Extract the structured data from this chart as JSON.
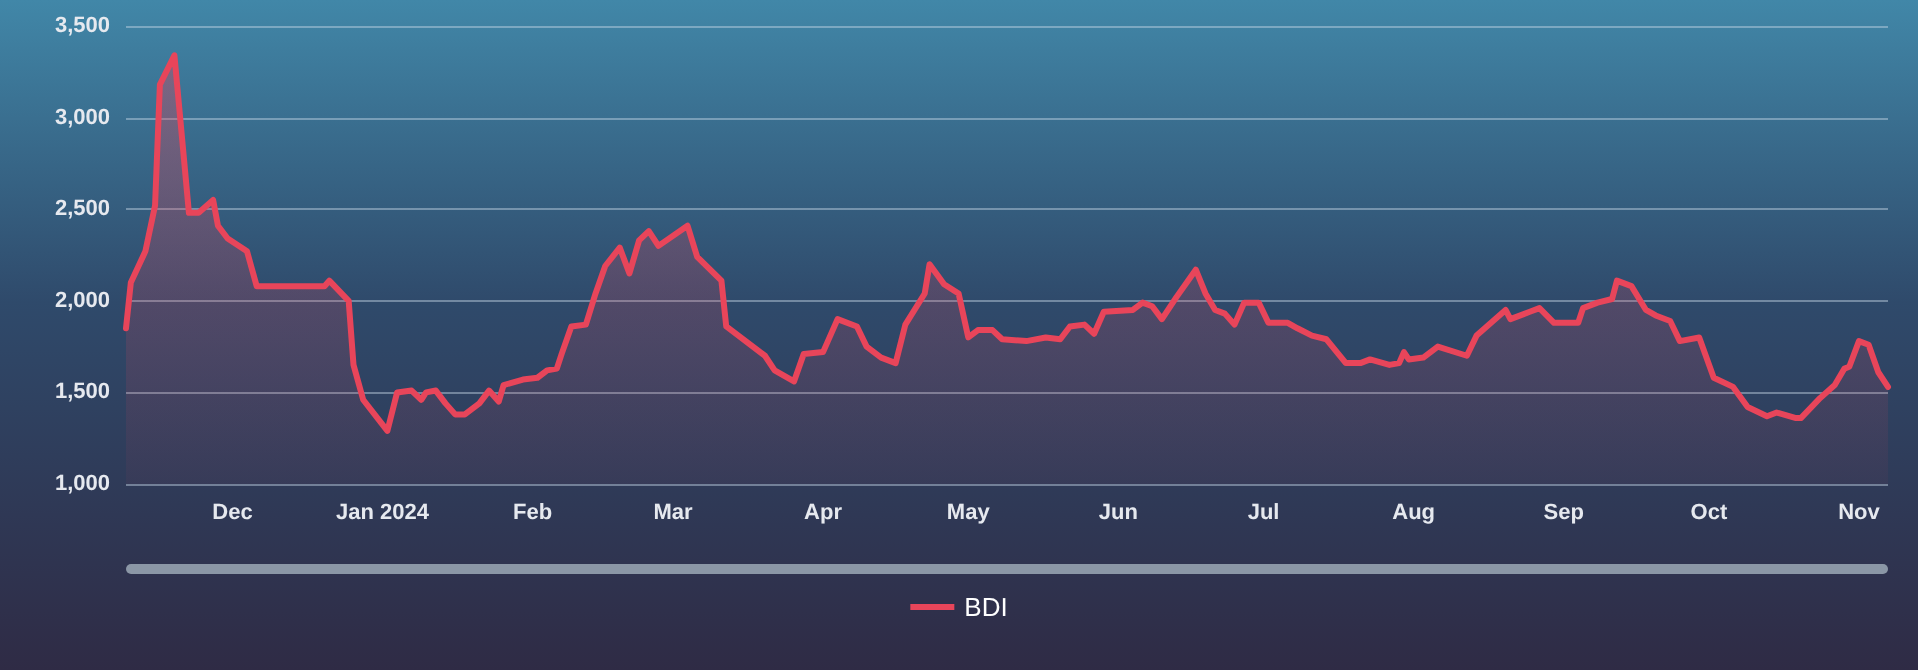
{
  "chart_data": {
    "type": "area",
    "xlim": [
      "2023-11-09",
      "2024-11-07"
    ],
    "xticks": [
      {
        "value": "2023-12-01",
        "label": "Dec"
      },
      {
        "value": "2024-01-01",
        "label": "Jan 2024"
      },
      {
        "value": "2024-02-01",
        "label": "Feb"
      },
      {
        "value": "2024-03-01",
        "label": "Mar"
      },
      {
        "value": "2024-04-01",
        "label": "Apr"
      },
      {
        "value": "2024-05-01",
        "label": "May"
      },
      {
        "value": "2024-06-01",
        "label": "Jun"
      },
      {
        "value": "2024-07-01",
        "label": "Jul"
      },
      {
        "value": "2024-08-01",
        "label": "Aug"
      },
      {
        "value": "2024-09-01",
        "label": "Sep"
      },
      {
        "value": "2024-10-01",
        "label": "Oct"
      },
      {
        "value": "2024-11-01",
        "label": "Nov"
      }
    ],
    "ylim": [
      1000,
      3500
    ],
    "yticks": [
      {
        "value": 1000,
        "label": "1,000"
      },
      {
        "value": 1500,
        "label": "1,500"
      },
      {
        "value": 2000,
        "label": "2,000"
      },
      {
        "value": 2500,
        "label": "2,500"
      },
      {
        "value": 3000,
        "label": "3,000"
      },
      {
        "value": 3500,
        "label": "3,500"
      }
    ],
    "grid": "y",
    "legend": "bottom",
    "marker": "none",
    "line_style": "solid",
    "x": [
      "2023-11-09",
      "2023-11-10",
      "2023-11-13",
      "2023-11-15",
      "2023-11-16",
      "2023-11-19",
      "2023-11-22",
      "2023-11-24",
      "2023-11-27",
      "2023-11-28",
      "2023-11-30",
      "2023-12-04",
      "2023-12-06",
      "2023-12-20",
      "2023-12-21",
      "2023-12-25",
      "2023-12-26",
      "2023-12-28",
      "2024-01-02",
      "2024-01-04",
      "2024-01-07",
      "2024-01-09",
      "2024-01-10",
      "2024-01-12",
      "2024-01-14",
      "2024-01-16",
      "2024-01-18",
      "2024-01-21",
      "2024-01-23",
      "2024-01-25",
      "2024-01-26",
      "2024-01-30",
      "2024-02-02",
      "2024-02-04",
      "2024-02-06",
      "2024-02-07",
      "2024-02-09",
      "2024-02-12",
      "2024-02-14",
      "2024-02-16",
      "2024-02-19",
      "2024-02-21",
      "2024-02-23",
      "2024-02-25",
      "2024-02-27",
      "2024-03-04",
      "2024-03-06",
      "2024-03-11",
      "2024-03-12",
      "2024-03-20",
      "2024-03-22",
      "2024-03-26",
      "2024-03-28",
      "2024-04-01",
      "2024-04-04",
      "2024-04-08",
      "2024-04-10",
      "2024-04-13",
      "2024-04-16",
      "2024-04-18",
      "2024-04-22",
      "2024-04-23",
      "2024-04-26",
      "2024-04-29",
      "2024-05-01",
      "2024-05-03",
      "2024-05-06",
      "2024-05-08",
      "2024-05-13",
      "2024-05-17",
      "2024-05-20",
      "2024-05-22",
      "2024-05-25",
      "2024-05-27",
      "2024-05-29",
      "2024-06-04",
      "2024-06-06",
      "2024-06-08",
      "2024-06-10",
      "2024-06-13",
      "2024-06-17",
      "2024-06-19",
      "2024-06-21",
      "2024-06-23",
      "2024-06-25",
      "2024-06-27",
      "2024-06-30",
      "2024-07-02",
      "2024-07-06",
      "2024-07-08",
      "2024-07-11",
      "2024-07-14",
      "2024-07-18",
      "2024-07-21",
      "2024-07-23",
      "2024-07-27",
      "2024-07-29",
      "2024-07-30",
      "2024-07-31",
      "2024-08-03",
      "2024-08-06",
      "2024-08-12",
      "2024-08-14",
      "2024-08-20",
      "2024-08-21",
      "2024-08-25",
      "2024-08-27",
      "2024-08-30",
      "2024-09-04",
      "2024-09-05",
      "2024-09-08",
      "2024-09-11",
      "2024-09-12",
      "2024-09-15",
      "2024-09-18",
      "2024-09-20",
      "2024-09-23",
      "2024-09-25",
      "2024-09-29",
      "2024-10-02",
      "2024-10-06",
      "2024-10-09",
      "2024-10-13",
      "2024-10-15",
      "2024-10-19",
      "2024-10-20",
      "2024-10-24",
      "2024-10-27",
      "2024-10-29",
      "2024-10-30",
      "2024-11-01",
      "2024-11-03",
      "2024-11-05",
      "2024-11-07"
    ],
    "series": [
      {
        "name": "BDI",
        "color": "#e8455a",
        "values": [
          1850,
          2100,
          2270,
          2520,
          3180,
          3340,
          2480,
          2480,
          2550,
          2410,
          2340,
          2270,
          2080,
          2080,
          2110,
          2000,
          1650,
          1460,
          1290,
          1500,
          1510,
          1460,
          1500,
          1510,
          1440,
          1380,
          1380,
          1440,
          1510,
          1450,
          1540,
          1570,
          1580,
          1620,
          1630,
          1710,
          1860,
          1870,
          2040,
          2190,
          2290,
          2150,
          2330,
          2380,
          2300,
          2410,
          2240,
          2110,
          1860,
          1700,
          1620,
          1560,
          1710,
          1720,
          1900,
          1860,
          1750,
          1690,
          1660,
          1870,
          2040,
          2200,
          2090,
          2040,
          1800,
          1840,
          1840,
          1790,
          1780,
          1800,
          1790,
          1860,
          1870,
          1820,
          1940,
          1950,
          1990,
          1970,
          1900,
          2020,
          2170,
          2040,
          1950,
          1930,
          1870,
          1990,
          1990,
          1880,
          1880,
          1850,
          1810,
          1790,
          1660,
          1660,
          1680,
          1650,
          1660,
          1720,
          1680,
          1690,
          1750,
          1700,
          1810,
          1950,
          1900,
          1940,
          1960,
          1880,
          1880,
          1960,
          1990,
          2010,
          2110,
          2080,
          1950,
          1920,
          1890,
          1780,
          1800,
          1580,
          1530,
          1420,
          1370,
          1390,
          1360,
          1360,
          1470,
          1540,
          1630,
          1640,
          1780,
          1760,
          1610,
          1530
        ]
      }
    ]
  }
}
